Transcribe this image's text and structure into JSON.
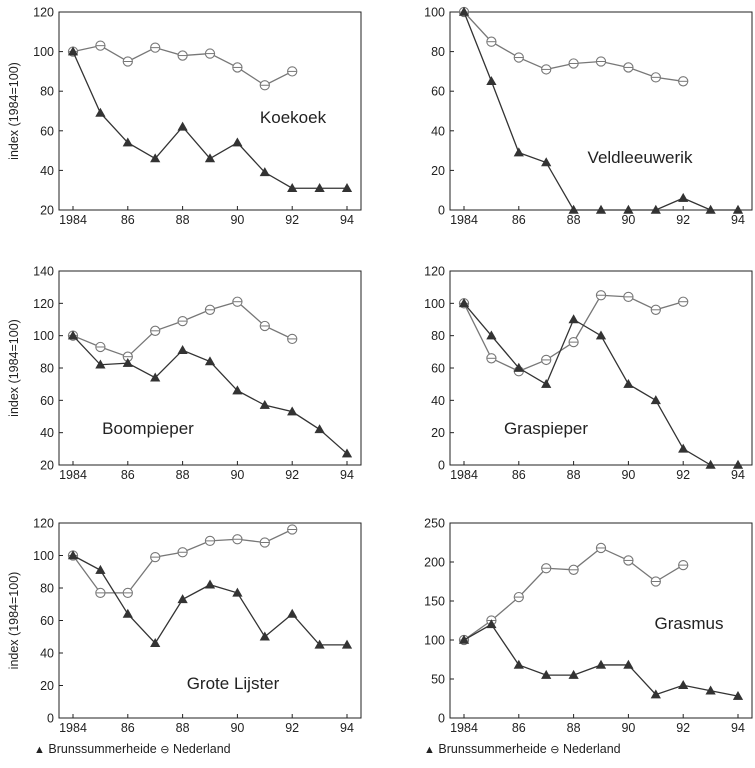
{
  "ylabel": "index (1984=100)",
  "legend": {
    "series_a_symbol": "▲",
    "series_a_label": "Brunssummerheide",
    "series_b_symbol": "⊖",
    "series_b_label": "Nederland"
  },
  "colors": {
    "series_a": "#333333",
    "series_b": "#777777"
  },
  "chart_data": [
    {
      "type": "line",
      "annotation": "Koekoek",
      "ylabel": "index (1984=100)",
      "xticks": [
        "1984",
        "86",
        "88",
        "90",
        "92",
        "94"
      ],
      "xlim": [
        1984,
        1994
      ],
      "ylim": [
        20,
        120
      ],
      "yticks": [
        20,
        40,
        60,
        80,
        100,
        120
      ],
      "series": [
        {
          "name": "Brunssummerheide",
          "marker": "triangle",
          "x": [
            1984,
            1985,
            1986,
            1987,
            1988,
            1989,
            1990,
            1991,
            1992,
            1993,
            1994
          ],
          "y": [
            100,
            69,
            54,
            46,
            62,
            46,
            54,
            39,
            31,
            31,
            31
          ]
        },
        {
          "name": "Nederland",
          "marker": "circle",
          "x": [
            1984,
            1985,
            1986,
            1987,
            1988,
            1989,
            1990,
            1991,
            1992
          ],
          "y": [
            100,
            103,
            95,
            102,
            98,
            99,
            92,
            83,
            90
          ]
        }
      ]
    },
    {
      "type": "line",
      "annotation": "Veldleeuwerik",
      "ylabel": "",
      "xticks": [
        "1984",
        "86",
        "88",
        "90",
        "92",
        "94"
      ],
      "xlim": [
        1984,
        1994
      ],
      "ylim": [
        0,
        100
      ],
      "yticks": [
        0,
        20,
        40,
        60,
        80,
        100
      ],
      "series": [
        {
          "name": "Brunssummerheide",
          "marker": "triangle",
          "x": [
            1984,
            1985,
            1986,
            1987,
            1988,
            1989,
            1990,
            1991,
            1992,
            1993,
            1994
          ],
          "y": [
            100,
            65,
            29,
            24,
            0,
            0,
            0,
            0,
            6,
            0,
            0
          ]
        },
        {
          "name": "Nederland",
          "marker": "circle",
          "x": [
            1984,
            1985,
            1986,
            1987,
            1988,
            1989,
            1990,
            1991,
            1992
          ],
          "y": [
            100,
            85,
            77,
            71,
            74,
            75,
            72,
            67,
            65
          ]
        }
      ]
    },
    {
      "type": "line",
      "annotation": "Boompieper",
      "ylabel": "index (1984=100)",
      "xticks": [
        "1984",
        "86",
        "88",
        "90",
        "92",
        "94"
      ],
      "xlim": [
        1984,
        1994
      ],
      "ylim": [
        20,
        140
      ],
      "yticks": [
        20,
        40,
        60,
        80,
        100,
        120,
        140
      ],
      "series": [
        {
          "name": "Brunssummerheide",
          "marker": "triangle",
          "x": [
            1984,
            1985,
            1986,
            1987,
            1988,
            1989,
            1990,
            1991,
            1992,
            1993,
            1994
          ],
          "y": [
            100,
            82,
            83,
            74,
            91,
            84,
            66,
            57,
            53,
            42,
            27
          ]
        },
        {
          "name": "Nederland",
          "marker": "circle",
          "x": [
            1984,
            1985,
            1986,
            1987,
            1988,
            1989,
            1990,
            1991,
            1992
          ],
          "y": [
            100,
            93,
            87,
            103,
            109,
            116,
            121,
            106,
            98
          ]
        }
      ]
    },
    {
      "type": "line",
      "annotation": "Graspieper",
      "ylabel": "",
      "xticks": [
        "1984",
        "86",
        "88",
        "90",
        "92",
        "94"
      ],
      "xlim": [
        1984,
        1994
      ],
      "ylim": [
        0,
        120
      ],
      "yticks": [
        0,
        20,
        40,
        60,
        80,
        100,
        120
      ],
      "series": [
        {
          "name": "Brunssummerheide",
          "marker": "triangle",
          "x": [
            1984,
            1985,
            1986,
            1987,
            1988,
            1989,
            1990,
            1991,
            1992,
            1993,
            1994
          ],
          "y": [
            100,
            80,
            60,
            50,
            90,
            80,
            50,
            40,
            10,
            0,
            0
          ]
        },
        {
          "name": "Nederland",
          "marker": "circle",
          "x": [
            1984,
            1985,
            1986,
            1987,
            1988,
            1989,
            1990,
            1991,
            1992
          ],
          "y": [
            100,
            66,
            58,
            65,
            76,
            105,
            104,
            96,
            101
          ]
        }
      ]
    },
    {
      "type": "line",
      "annotation": "Grote Lijster",
      "ylabel": "index (1984=100)",
      "xticks": [
        "1984",
        "86",
        "88",
        "90",
        "92",
        "94"
      ],
      "xlim": [
        1984,
        1994
      ],
      "ylim": [
        0,
        120
      ],
      "yticks": [
        0,
        20,
        40,
        60,
        80,
        100,
        120
      ],
      "series": [
        {
          "name": "Brunssummerheide",
          "marker": "triangle",
          "x": [
            1984,
            1985,
            1986,
            1987,
            1988,
            1989,
            1990,
            1991,
            1992,
            1993,
            1994
          ],
          "y": [
            100,
            91,
            64,
            46,
            73,
            82,
            77,
            50,
            64,
            45,
            45
          ]
        },
        {
          "name": "Nederland",
          "marker": "circle",
          "x": [
            1984,
            1985,
            1986,
            1987,
            1988,
            1989,
            1990,
            1991,
            1992
          ],
          "y": [
            100,
            77,
            77,
            99,
            102,
            109,
            110,
            108,
            116
          ]
        }
      ]
    },
    {
      "type": "line",
      "annotation": "Grasmus",
      "ylabel": "",
      "xticks": [
        "1984",
        "86",
        "88",
        "90",
        "92",
        "94"
      ],
      "xlim": [
        1984,
        1994
      ],
      "ylim": [
        0,
        250
      ],
      "yticks": [
        0,
        50,
        100,
        150,
        200,
        250
      ],
      "series": [
        {
          "name": "Brunssummerheide",
          "marker": "triangle",
          "x": [
            1984,
            1985,
            1986,
            1987,
            1988,
            1989,
            1990,
            1991,
            1992,
            1993,
            1994
          ],
          "y": [
            100,
            120,
            68,
            55,
            55,
            68,
            68,
            30,
            42,
            35,
            28
          ]
        },
        {
          "name": "Nederland",
          "marker": "circle",
          "x": [
            1984,
            1985,
            1986,
            1987,
            1988,
            1989,
            1990,
            1991,
            1992
          ],
          "y": [
            100,
            125,
            155,
            192,
            190,
            218,
            202,
            175,
            196
          ]
        }
      ]
    }
  ]
}
